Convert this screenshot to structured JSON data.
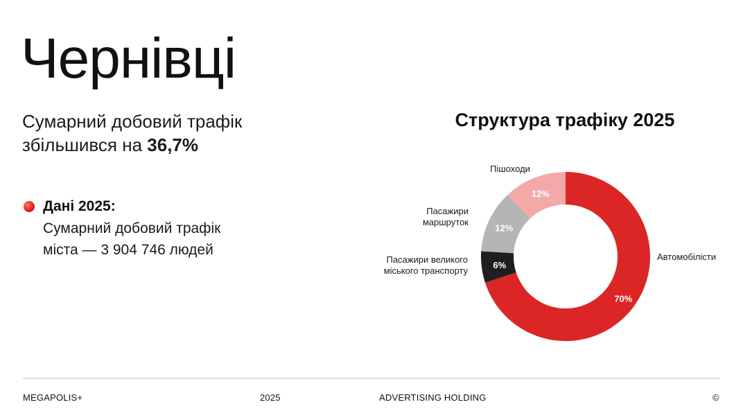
{
  "title": "Чернівці",
  "summary": {
    "line1": "Сумарний добовий трафік",
    "line2_prefix": "збільшився на",
    "line2_value": "36,7%"
  },
  "data_2025": {
    "heading": "Дані 2025:",
    "line1": "Сумарний добовий трафік",
    "line2": "міста — 3 904 746 людей"
  },
  "chart_data": {
    "type": "pie",
    "title": "Структура трафіку 2025",
    "donut": true,
    "categories": [
      "Автомобілісти",
      "Пасажири великого міського транспорту",
      "Пасажири маршруток",
      "Пішоходи"
    ],
    "values": [
      70,
      6,
      12,
      12
    ],
    "value_labels": [
      "70%",
      "6%",
      "12%",
      "12%"
    ],
    "label_lines": [
      [
        "Автомобілісти"
      ],
      [
        "Пасажири великого",
        "міського транспорту"
      ],
      [
        "Пасажири",
        "маршруток"
      ],
      [
        "Пішоходи"
      ]
    ],
    "colors": [
      "#dc2626",
      "#1f1f1f",
      "#b5b5b5",
      "#f4a9a9"
    ],
    "value_label_colors": [
      "#ffffff",
      "#ffffff",
      "#ffffff",
      "#ffffff"
    ]
  },
  "footer": {
    "brand": "MEGAPOLIS+",
    "year": "2025",
    "tagline": "ADVERTISING HOLDING",
    "copyright": "©"
  }
}
